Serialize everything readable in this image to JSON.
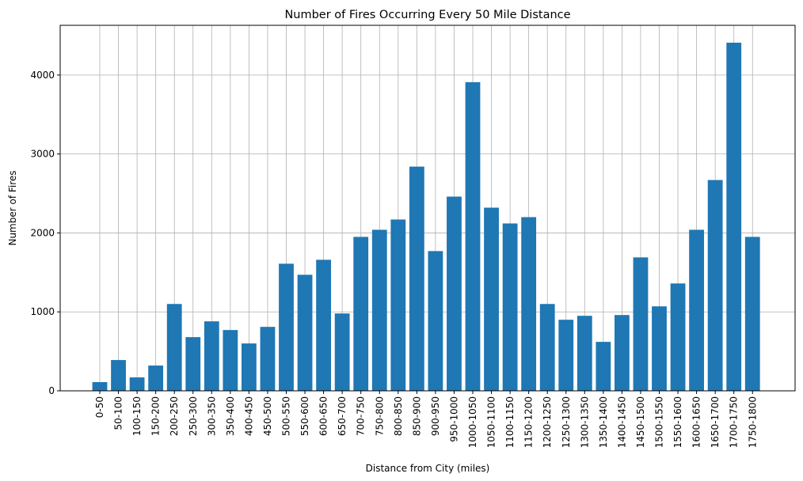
{
  "chart_data": {
    "type": "bar",
    "title": "Number of Fires Occurring Every 50 Mile Distance",
    "xlabel": "Distance from City (miles)",
    "ylabel": "Number of Fires",
    "categories": [
      "0-50",
      "50-100",
      "100-150",
      "150-200",
      "200-250",
      "250-300",
      "300-350",
      "350-400",
      "400-450",
      "450-500",
      "500-550",
      "550-600",
      "600-650",
      "650-700",
      "700-750",
      "750-800",
      "800-850",
      "850-900",
      "900-950",
      "950-1000",
      "1000-1050",
      "1050-1100",
      "1100-1150",
      "1150-1200",
      "1200-1250",
      "1250-1300",
      "1300-1350",
      "1350-1400",
      "1400-1450",
      "1450-1500",
      "1500-1550",
      "1550-1600",
      "1600-1650",
      "1650-1700",
      "1700-1750",
      "1750-1800"
    ],
    "values": [
      110,
      390,
      170,
      320,
      1100,
      680,
      880,
      770,
      600,
      810,
      1610,
      1470,
      1660,
      980,
      1950,
      2040,
      2170,
      2840,
      1770,
      2460,
      3910,
      2320,
      2120,
      2200,
      1100,
      900,
      950,
      620,
      960,
      1690,
      1070,
      1360,
      2040,
      2670,
      4410,
      1950
    ],
    "yticks": [
      0,
      1000,
      2000,
      3000,
      4000
    ],
    "ylim": [
      0,
      4630
    ],
    "grid": true,
    "bar_color": "#1f77b4"
  }
}
